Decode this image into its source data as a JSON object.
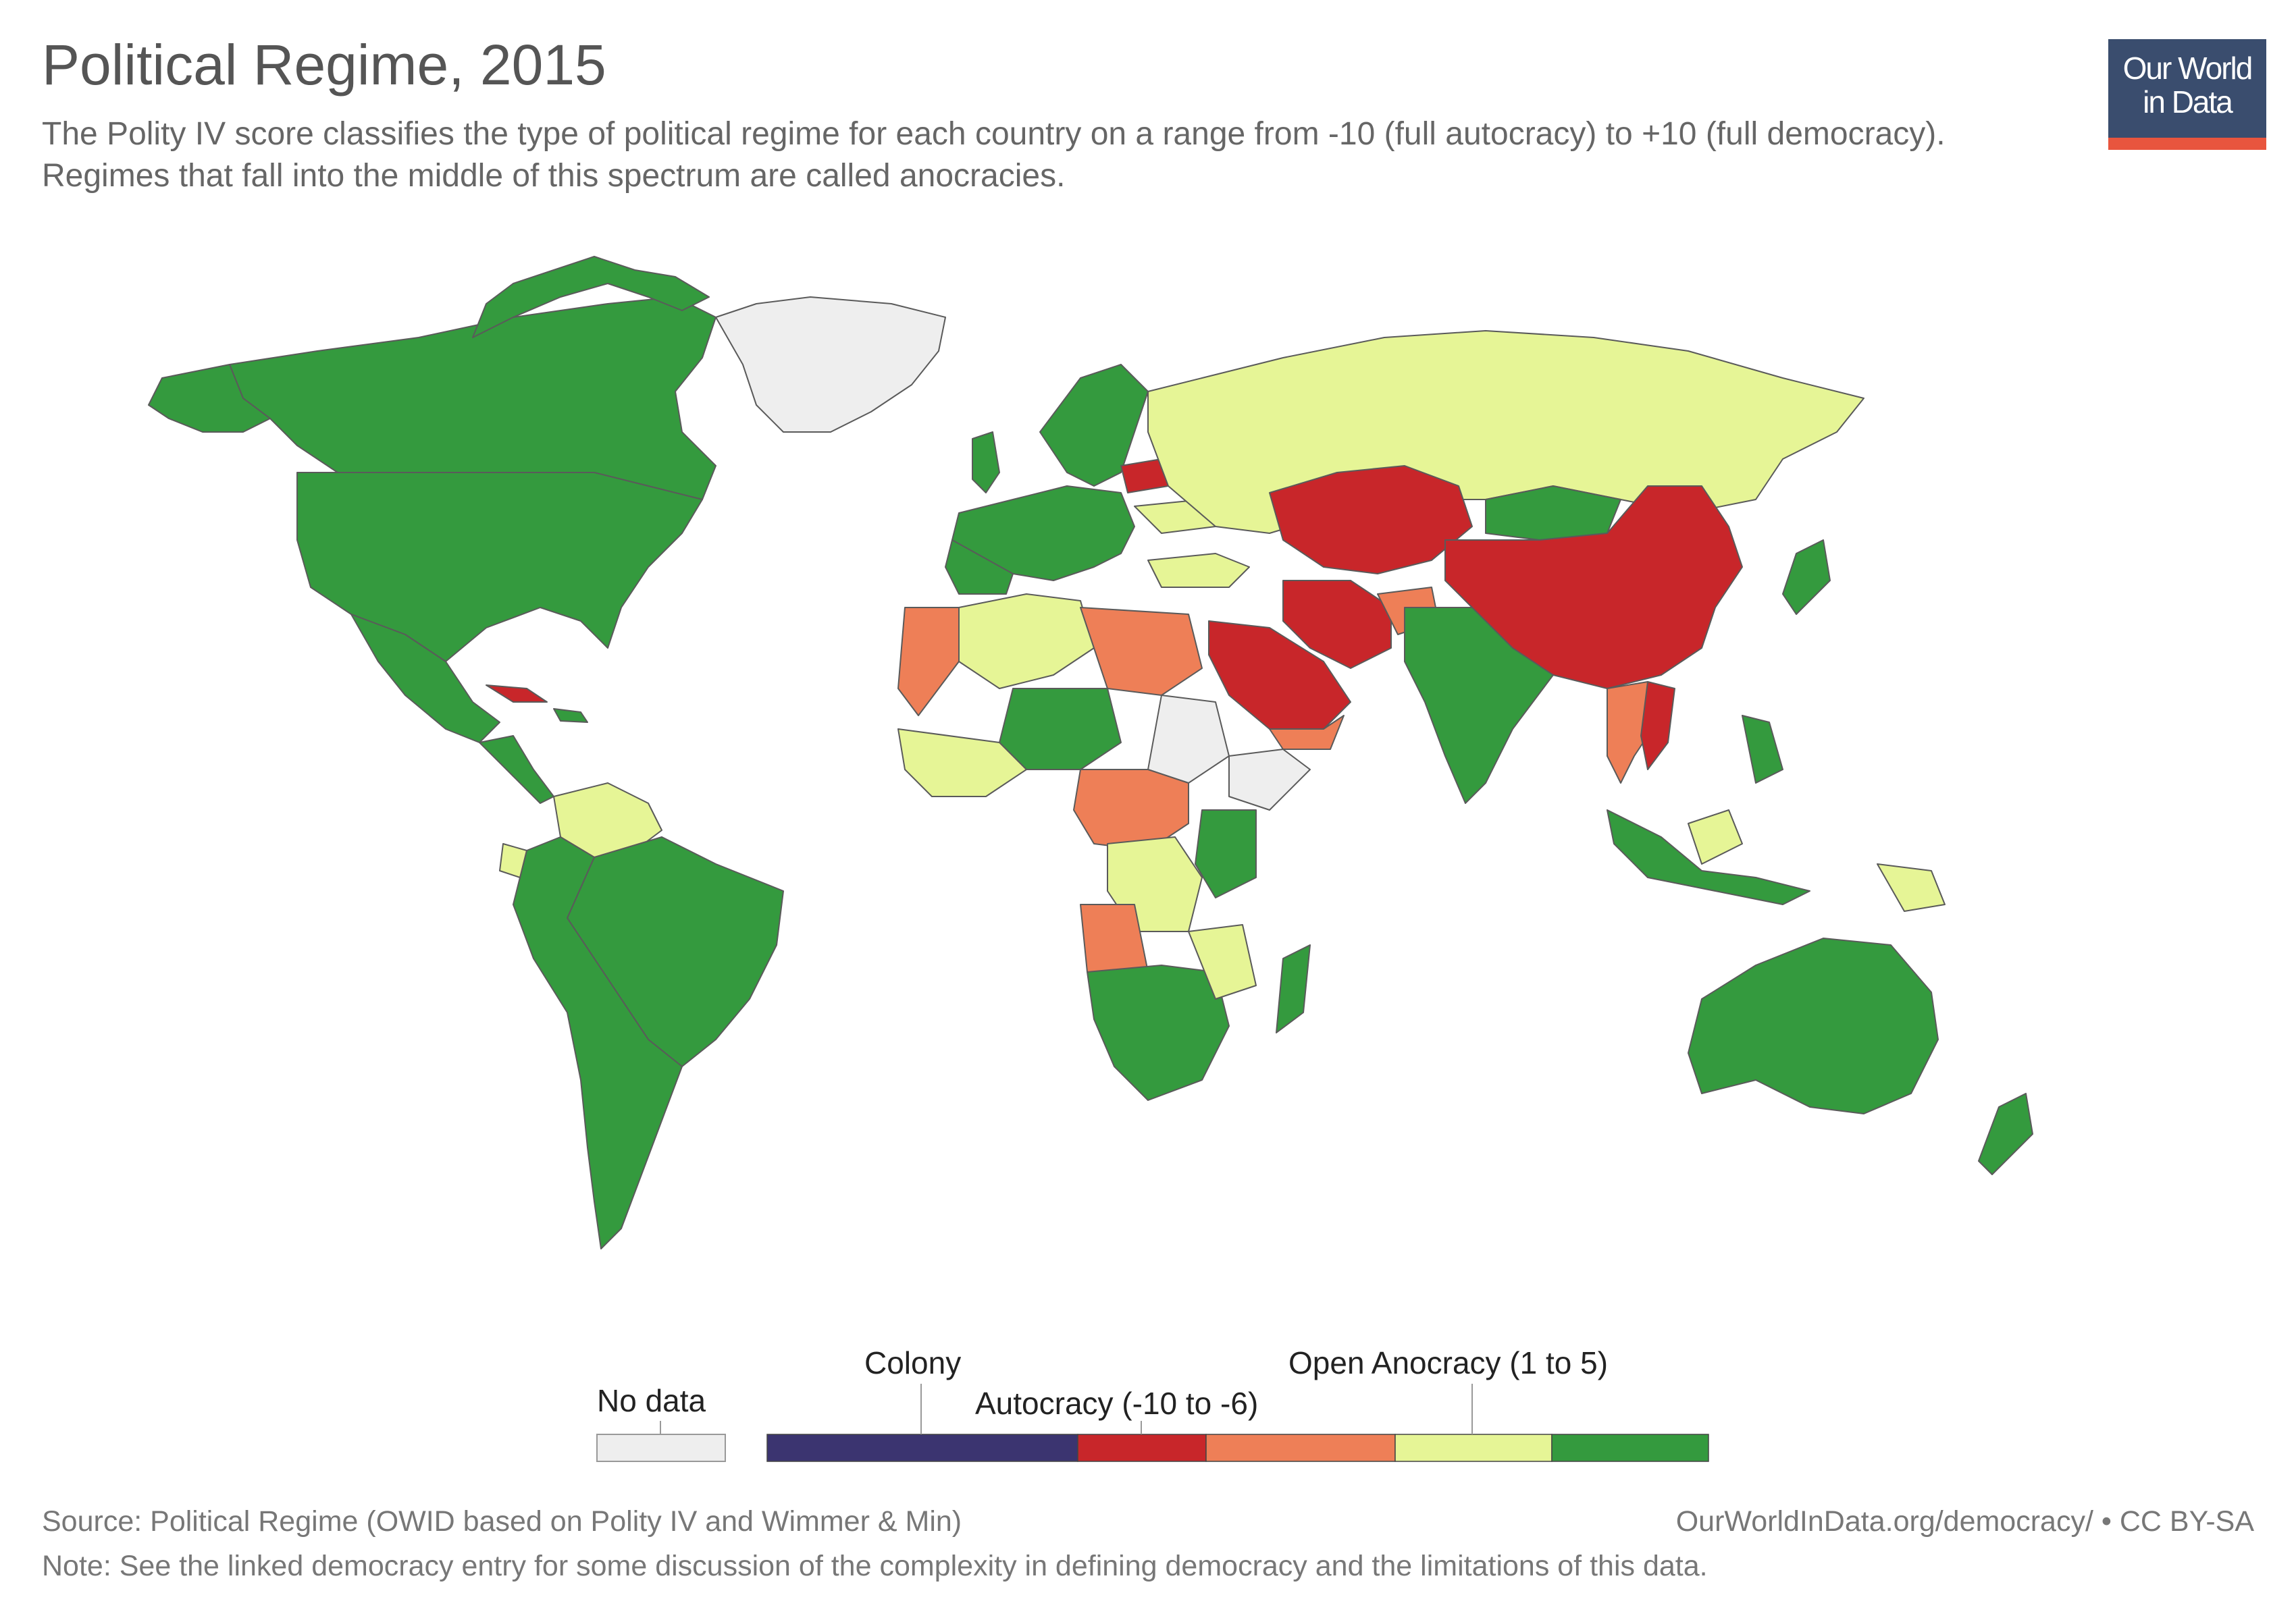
{
  "title": "Political Regime, 2015",
  "subtitle": "The Polity IV score classifies the type of political regime for each country on a range from -10 (full autocracy) to +10 (full democracy). Regimes that fall into the middle of this spectrum are called anocracies.",
  "logo": {
    "line1": "Our World",
    "line2": "in Data"
  },
  "legend": {
    "no_data_label": "No data",
    "no_data_color": "#eeeeee",
    "categories": [
      {
        "label": "Colony",
        "color": "#3b3470"
      },
      {
        "label": "Autocracy (-10 to -6)",
        "color": "#c8262a"
      },
      {
        "label": "",
        "color": "#ee7f57"
      },
      {
        "label": "Open Anocracy (1 to 5)",
        "color": "#e6f596"
      },
      {
        "label": "",
        "color": "#349a3e"
      }
    ]
  },
  "colors": {
    "democracy": "#349a3e",
    "open_anocracy": "#e6f596",
    "closed_anocracy": "#ee7f57",
    "autocracy": "#c8262a",
    "colony": "#3b3470",
    "no_data": "#eeeeee"
  },
  "footer": {
    "source": "Source: Political Regime (OWID based on Polity IV and Wimmer & Min)",
    "credit": "OurWorldInData.org/democracy/ • CC BY-SA",
    "note": "Note: See the linked democracy entry for some discussion of the complexity in defining democracy and the limitations of this data."
  }
}
